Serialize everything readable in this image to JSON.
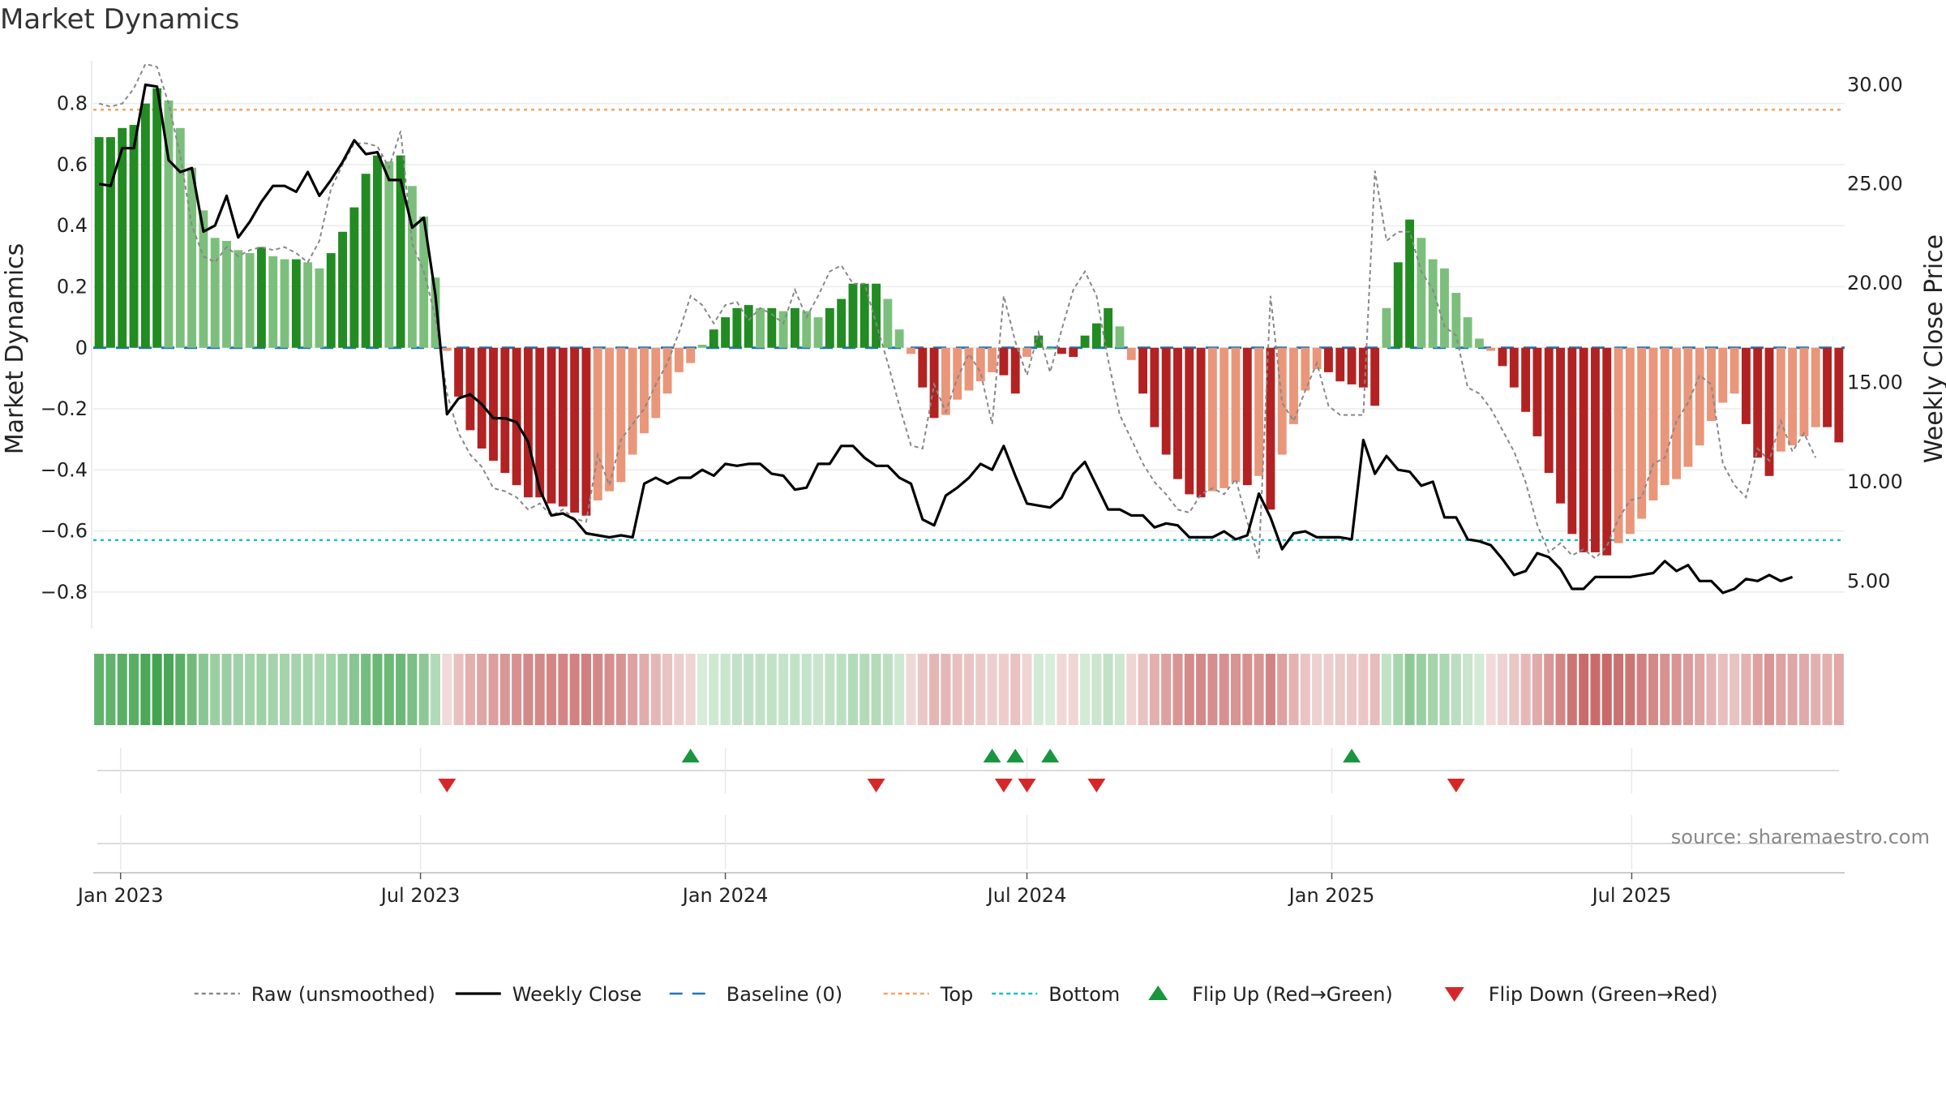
{
  "title": "Market Dynamics",
  "source": "source: sharemaestro.com",
  "colors": {
    "strong_green": "#228b22",
    "light_green": "#7cbf7c",
    "strong_red": "#b22222",
    "light_red": "#e9967a",
    "raw_line": "#888888",
    "close_line": "#000000",
    "baseline": "#1f77b4",
    "top": "#f4a460",
    "bottom": "#17becf",
    "flip_up": "#1a9641",
    "flip_down": "#d62728",
    "grid": "#ececec"
  },
  "chart_data": {
    "type": "bar",
    "title": "Market Dynamics",
    "ylabel": "Market Dynamics",
    "y2label": "Weekly Close Price",
    "ylim": [
      -0.92,
      0.94
    ],
    "y2lim": [
      2.6,
      31.2
    ],
    "yticks": [
      "0.8",
      "0.6",
      "0.4",
      "0.2",
      "0",
      "−0.2",
      "−0.4",
      "−0.6",
      "−0.8"
    ],
    "ytick_values": [
      0.8,
      0.6,
      0.4,
      0.2,
      0,
      -0.2,
      -0.4,
      -0.6,
      -0.8
    ],
    "y2ticks": [
      "30.00",
      "25.00",
      "20.00",
      "15.00",
      "10.00",
      "5.00"
    ],
    "y2tick_values": [
      30,
      25,
      20,
      15,
      10,
      5
    ],
    "xticks": [
      "Jan 2023",
      "Jul 2023",
      "Jan 2024",
      "Jul 2024",
      "Jan 2025",
      "Jul 2025"
    ],
    "xtick_dates": [
      "2023-01-01",
      "2023-07-01",
      "2024-01-01",
      "2024-07-01",
      "2025-01-01",
      "2025-07-01"
    ],
    "first_week": "2022-12-19",
    "top": 0.78,
    "bottom": -0.63,
    "baseline": 0,
    "grid": true,
    "legend_position": "bottom",
    "legend": [
      {
        "label": "Raw (unsmoothed)",
        "kind": "dotted",
        "color": "#888888"
      },
      {
        "label": "Weekly Close",
        "kind": "solid",
        "color": "#000000"
      },
      {
        "label": "Baseline (0)",
        "kind": "dashed",
        "color": "#1f77b4"
      },
      {
        "label": "Top",
        "kind": "dotted",
        "color": "#f4a460"
      },
      {
        "label": "Bottom",
        "kind": "dotted",
        "color": "#17becf"
      },
      {
        "label": "Flip Up (Red→Green)",
        "kind": "up",
        "color": "#1a9641"
      },
      {
        "label": "Flip Down (Green→Red)",
        "kind": "down",
        "color": "#d62728"
      }
    ],
    "series": [
      {
        "name": "Market Dynamics (smoothed)",
        "values": [
          0.69,
          0.69,
          0.72,
          0.73,
          0.8,
          0.85,
          0.81,
          0.72,
          0.59,
          0.45,
          0.36,
          0.35,
          0.32,
          0.31,
          0.33,
          0.3,
          0.29,
          0.29,
          0.28,
          0.26,
          0.31,
          0.38,
          0.46,
          0.57,
          0.63,
          0.61,
          0.63,
          0.53,
          0.43,
          0.23,
          -0.01,
          -0.16,
          -0.27,
          -0.33,
          -0.37,
          -0.41,
          -0.45,
          -0.49,
          -0.49,
          -0.51,
          -0.52,
          -0.54,
          -0.55,
          -0.5,
          -0.47,
          -0.44,
          -0.35,
          -0.28,
          -0.23,
          -0.15,
          -0.08,
          -0.05,
          0.01,
          0.06,
          0.1,
          0.13,
          0.14,
          0.13,
          0.13,
          0.12,
          0.13,
          0.12,
          0.1,
          0.13,
          0.16,
          0.21,
          0.21,
          0.21,
          0.16,
          0.06,
          -0.02,
          -0.13,
          -0.23,
          -0.22,
          -0.17,
          -0.14,
          -0.11,
          -0.08,
          -0.09,
          -0.15,
          -0.03,
          0.04,
          0.0,
          -0.02,
          -0.03,
          0.04,
          0.08,
          0.13,
          0.07,
          -0.04,
          -0.15,
          -0.26,
          -0.35,
          -0.43,
          -0.48,
          -0.49,
          -0.47,
          -0.46,
          -0.44,
          -0.45,
          -0.42,
          -0.53,
          -0.35,
          -0.25,
          -0.14,
          -0.07,
          -0.08,
          -0.11,
          -0.12,
          -0.13,
          -0.19,
          0.13,
          0.28,
          0.42,
          0.36,
          0.29,
          0.26,
          0.18,
          0.1,
          0.03,
          -0.01,
          -0.06,
          -0.13,
          -0.21,
          -0.29,
          -0.41,
          -0.51,
          -0.61,
          -0.67,
          -0.67,
          -0.68,
          -0.64,
          -0.61,
          -0.56,
          -0.5,
          -0.45,
          -0.43,
          -0.39,
          -0.32,
          -0.24,
          -0.18,
          -0.15,
          -0.25,
          -0.36,
          -0.42,
          -0.34,
          -0.32,
          -0.29,
          -0.26,
          -0.26,
          -0.31
        ]
      },
      {
        "name": "Raw (unsmoothed)",
        "values": [
          0.8,
          0.79,
          0.8,
          0.85,
          0.93,
          0.92,
          0.8,
          0.63,
          0.4,
          0.3,
          0.28,
          0.33,
          0.3,
          0.32,
          0.33,
          0.32,
          0.33,
          0.31,
          0.28,
          0.35,
          0.52,
          0.6,
          0.67,
          0.67,
          0.66,
          0.59,
          0.71,
          0.34,
          0.25,
          0.1,
          -0.15,
          -0.28,
          -0.35,
          -0.39,
          -0.46,
          -0.47,
          -0.49,
          -0.53,
          -0.51,
          -0.55,
          -0.53,
          -0.56,
          -0.57,
          -0.35,
          -0.45,
          -0.3,
          -0.25,
          -0.2,
          -0.12,
          -0.05,
          0.05,
          0.17,
          0.14,
          0.08,
          0.14,
          0.15,
          0.09,
          0.13,
          0.11,
          0.08,
          0.19,
          0.1,
          0.17,
          0.25,
          0.27,
          0.21,
          0.21,
          0.08,
          -0.05,
          -0.19,
          -0.32,
          -0.33,
          -0.12,
          -0.21,
          -0.1,
          -0.02,
          -0.08,
          -0.25,
          0.17,
          0.02,
          -0.09,
          0.05,
          -0.08,
          0.06,
          0.19,
          0.25,
          0.17,
          -0.04,
          -0.22,
          -0.3,
          -0.38,
          -0.44,
          -0.48,
          -0.53,
          -0.54,
          -0.48,
          -0.46,
          -0.48,
          -0.43,
          -0.57,
          -0.69,
          0.17,
          -0.18,
          -0.24,
          -0.14,
          -0.05,
          -0.19,
          -0.22,
          -0.22,
          -0.22,
          0.58,
          0.35,
          0.38,
          0.38,
          0.25,
          0.19,
          0.07,
          0.04,
          -0.13,
          -0.15,
          -0.2,
          -0.27,
          -0.34,
          -0.44,
          -0.58,
          -0.67,
          -0.64,
          -0.68,
          -0.66,
          -0.69,
          -0.65,
          -0.56,
          -0.5,
          -0.49,
          -0.38,
          -0.36,
          -0.24,
          -0.18,
          -0.09,
          -0.12,
          -0.38,
          -0.45,
          -0.49,
          -0.33,
          -0.37,
          -0.24,
          -0.34,
          -0.28,
          -0.36
        ]
      },
      {
        "name": "Weekly Close",
        "values": [
          25.0,
          24.9,
          26.8,
          26.8,
          30.0,
          29.9,
          26.2,
          25.6,
          25.8,
          22.6,
          22.9,
          24.4,
          22.3,
          23.1,
          24.1,
          24.9,
          24.9,
          24.6,
          25.6,
          24.4,
          25.2,
          26.1,
          27.2,
          26.5,
          26.6,
          25.2,
          25.2,
          22.8,
          23.3,
          19.4,
          13.4,
          14.2,
          14.4,
          13.9,
          13.2,
          13.2,
          13.0,
          12.0,
          9.6,
          8.3,
          8.4,
          8.1,
          7.4,
          7.3,
          7.2,
          7.3,
          7.2,
          9.9,
          10.2,
          9.9,
          10.2,
          10.2,
          10.6,
          10.3,
          10.9,
          10.8,
          10.9,
          10.9,
          10.4,
          10.3,
          9.6,
          9.7,
          10.9,
          10.9,
          11.8,
          11.8,
          11.2,
          10.8,
          10.8,
          10.2,
          9.9,
          8.1,
          7.8,
          9.3,
          9.7,
          10.2,
          10.9,
          10.6,
          11.8,
          10.3,
          8.9,
          8.8,
          8.7,
          9.2,
          10.4,
          11.0,
          9.8,
          8.6,
          8.6,
          8.3,
          8.3,
          7.7,
          7.9,
          7.8,
          7.2,
          7.2,
          7.2,
          7.5,
          7.1,
          7.3,
          9.4,
          8.2,
          6.6,
          7.4,
          7.5,
          7.2,
          7.2,
          7.2,
          7.1,
          12.1,
          10.4,
          11.3,
          10.6,
          10.5,
          9.8,
          10.0,
          8.2,
          8.2,
          7.1,
          7.0,
          6.8,
          6.1,
          5.3,
          5.5,
          6.4,
          6.2,
          5.6,
          4.6,
          4.6,
          5.2,
          5.2,
          5.2,
          5.2,
          5.3,
          5.4,
          6.0,
          5.5,
          5.8,
          5.0,
          5.0,
          4.4,
          4.6,
          5.1,
          5.0,
          5.3,
          5.0,
          5.2
        ],
        "axis": "right"
      }
    ],
    "flip_up_weeks": [
      51,
      77,
      79,
      82,
      108
    ],
    "flip_down_weeks": [
      30,
      67,
      78,
      80,
      86,
      117
    ]
  }
}
